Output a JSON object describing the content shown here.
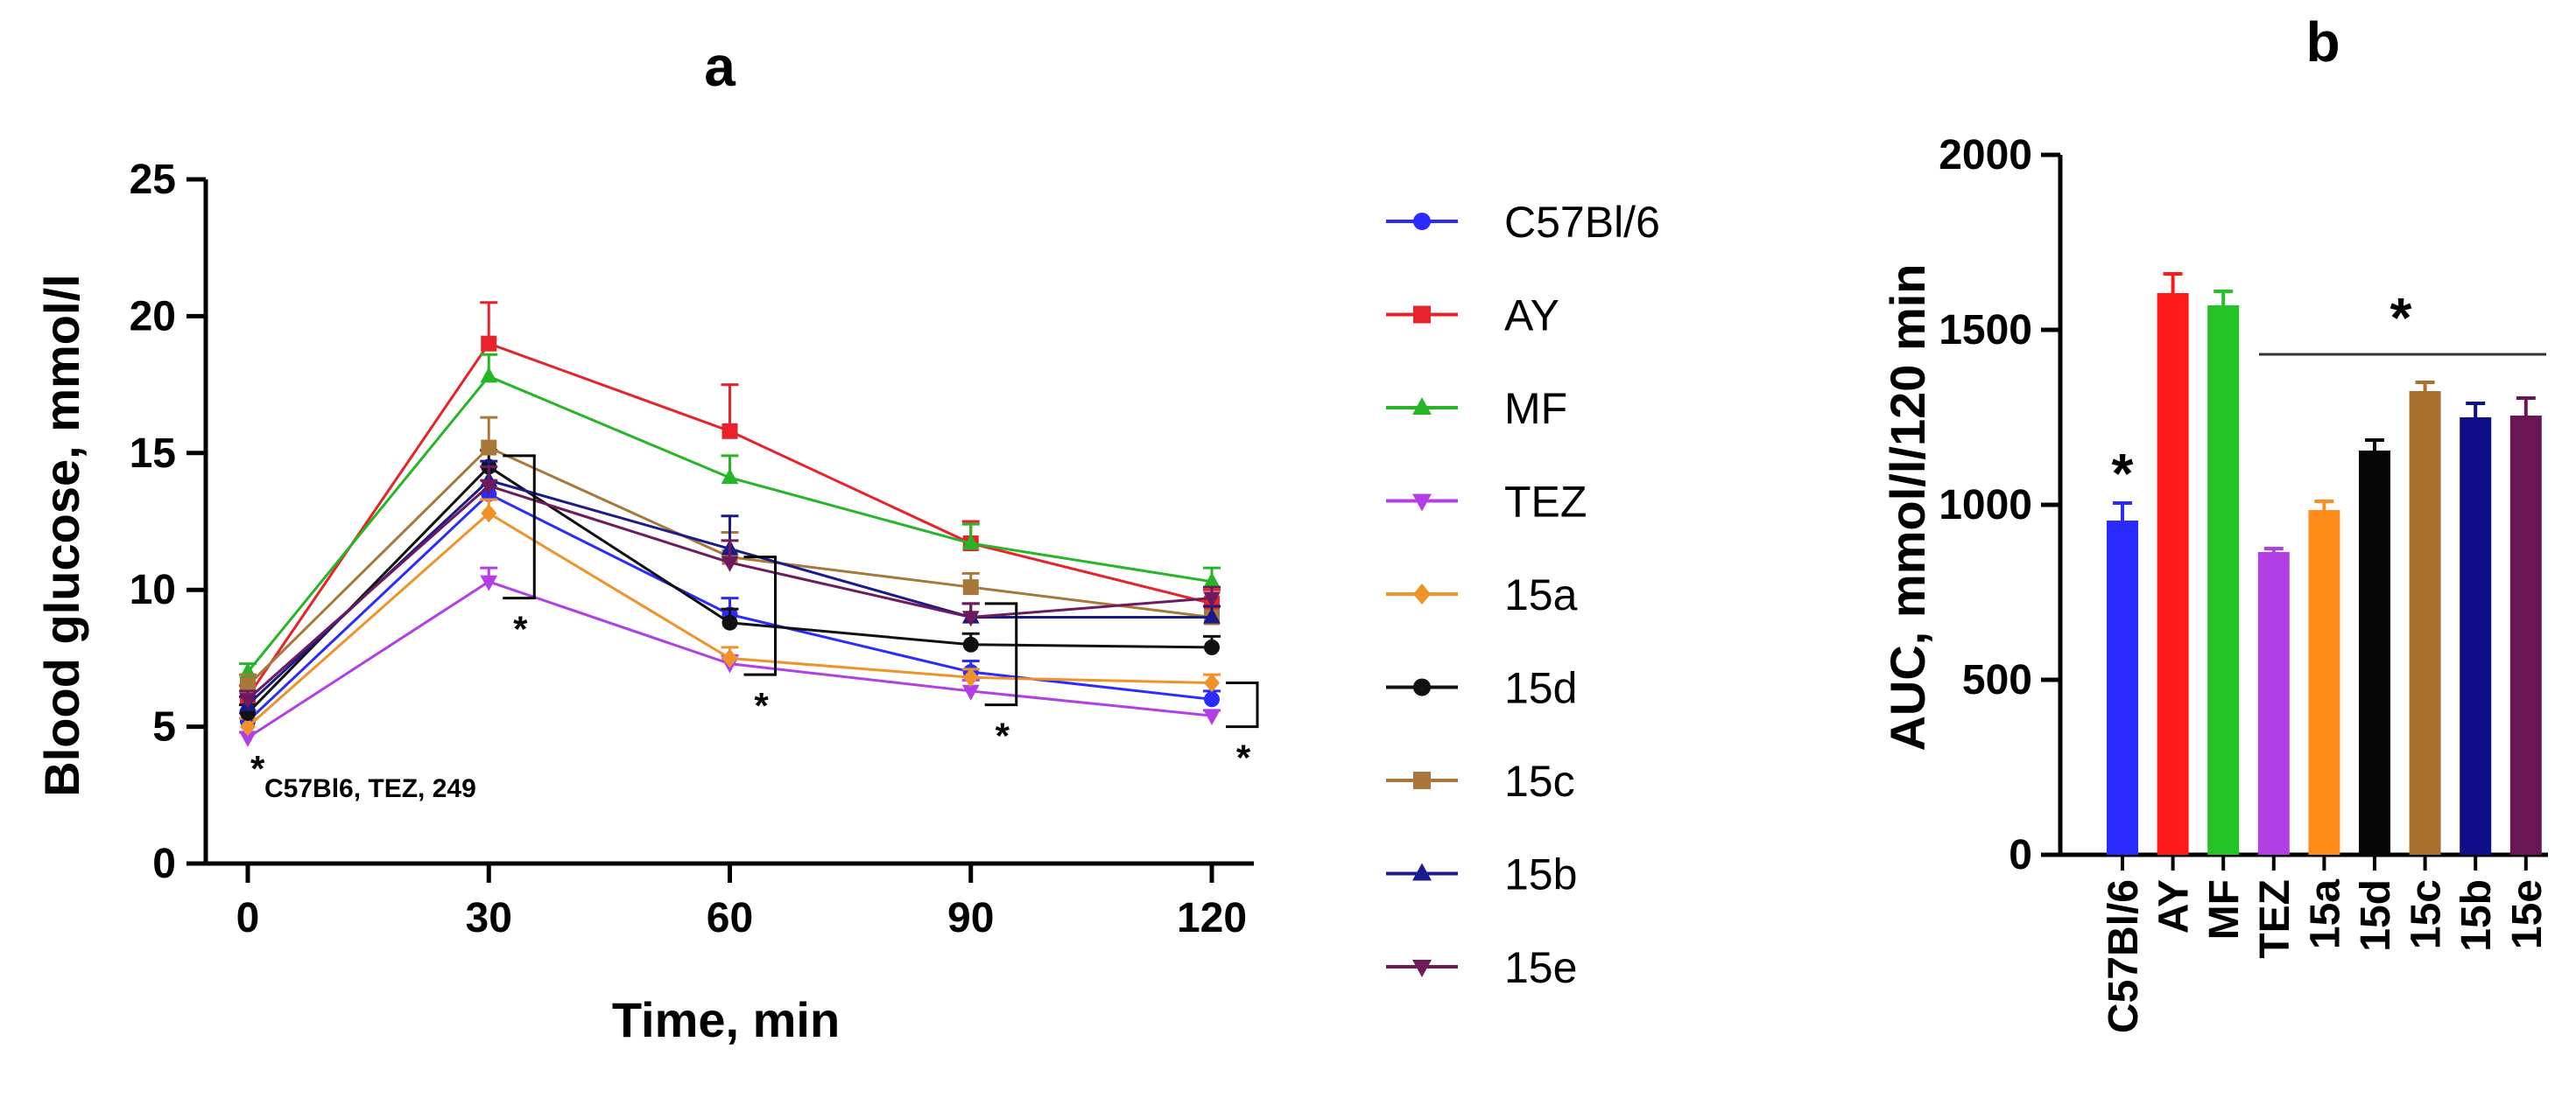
{
  "chart_data": [
    {
      "panel": "a",
      "type": "line",
      "title": "a",
      "xlabel": "Time, min",
      "ylabel": "Blood glucose, mmol/l",
      "x": [
        0,
        30,
        60,
        90,
        120
      ],
      "xlim": [
        0,
        120
      ],
      "ylim": [
        0,
        25
      ],
      "xticks": [
        "0",
        "30",
        "60",
        "90",
        "120"
      ],
      "yticks": [
        "0",
        "5",
        "10",
        "15",
        "20",
        "25"
      ],
      "series": [
        {
          "name": "C57Bl/6",
          "color": "#2b2bff",
          "marker": "circle",
          "values": [
            5.2,
            13.5,
            9.1,
            7.0,
            6.0
          ],
          "errors": [
            0.3,
            0.5,
            0.6,
            0.4,
            0.3
          ]
        },
        {
          "name": "AY",
          "color": "#e8222a",
          "marker": "square",
          "values": [
            6.1,
            19.0,
            15.8,
            11.7,
            9.5
          ],
          "errors": [
            0.4,
            1.5,
            1.7,
            0.8,
            0.5
          ]
        },
        {
          "name": "MF",
          "color": "#26b526",
          "marker": "triangle",
          "values": [
            7.0,
            17.8,
            14.1,
            11.7,
            10.3
          ],
          "errors": [
            0.3,
            0.8,
            0.8,
            0.7,
            0.5
          ]
        },
        {
          "name": "TEZ",
          "color": "#b23fe6",
          "marker": "tri-down",
          "values": [
            4.6,
            10.3,
            7.3,
            6.3,
            5.4
          ],
          "errors": [
            0.2,
            0.5,
            0.3,
            0.4,
            0.2
          ]
        },
        {
          "name": "15a",
          "color": "#f0922a",
          "marker": "diamond",
          "values": [
            5.0,
            12.8,
            7.5,
            6.8,
            6.6
          ],
          "errors": [
            0.3,
            0.5,
            0.4,
            0.3,
            0.3
          ]
        },
        {
          "name": "15d",
          "color": "#111111",
          "marker": "circle",
          "values": [
            5.5,
            14.5,
            8.8,
            8.0,
            7.9
          ],
          "errors": [
            0.3,
            0.6,
            0.5,
            0.4,
            0.4
          ]
        },
        {
          "name": "15c",
          "color": "#a8783b",
          "marker": "square",
          "values": [
            6.5,
            15.2,
            11.2,
            10.1,
            9.0
          ],
          "errors": [
            0.4,
            1.1,
            0.9,
            0.5,
            0.4
          ]
        },
        {
          "name": "15b",
          "color": "#1a1a8c",
          "marker": "triangle",
          "values": [
            5.8,
            14.0,
            11.5,
            9.0,
            9.0
          ],
          "errors": [
            0.3,
            0.7,
            1.2,
            0.5,
            0.4
          ]
        },
        {
          "name": "15e",
          "color": "#6e1a5c",
          "marker": "tri-down",
          "values": [
            6.0,
            13.8,
            11.0,
            9.0,
            9.7
          ],
          "errors": [
            0.3,
            0.7,
            0.8,
            0.5,
            0.4
          ]
        }
      ],
      "annotations": {
        "note_star": "*",
        "note_text": "C57Bl6, TEZ, 249",
        "time_stars": [
          "*",
          "*",
          "*",
          "*"
        ]
      }
    },
    {
      "panel": "b",
      "type": "bar",
      "title": "b",
      "xlabel": "",
      "ylabel": "AUC, mmol/l/120 min",
      "ylim": [
        0,
        2000
      ],
      "yticks": [
        "0",
        "500",
        "1000",
        "1500",
        "2000"
      ],
      "categories": [
        "C57Bl/6",
        "AY",
        "MF",
        "TEZ",
        "15a",
        "15d",
        "15c",
        "15b",
        "15e"
      ],
      "values": [
        955,
        1605,
        1570,
        865,
        985,
        1155,
        1325,
        1250,
        1255
      ],
      "errors": [
        50,
        55,
        40,
        10,
        25,
        30,
        25,
        40,
        50
      ],
      "colors": [
        "#2b2bff",
        "#ff1a1a",
        "#22c322",
        "#b23fe6",
        "#ff8c1a",
        "#050505",
        "#a8702a",
        "#0e0e8a",
        "#6a1655"
      ],
      "annotations": {
        "star_first": "*",
        "star_group": "*"
      }
    }
  ]
}
